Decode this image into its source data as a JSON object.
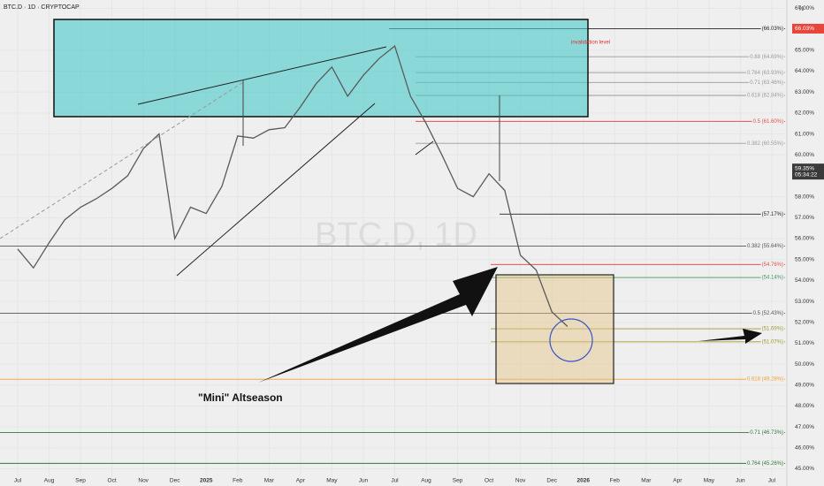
{
  "chart_data": {
    "type": "line",
    "title": "BTC.D · 1D · CRYPTOCAP",
    "watermark": "BTC.D, 1D",
    "unit_header": "%",
    "categories": [
      "Jul",
      null,
      "Aug",
      null,
      "Sep",
      null,
      "Oct",
      null,
      "Nov",
      null,
      "Dec",
      null,
      "2025",
      null,
      "Feb",
      null,
      "Mar",
      null,
      "Apr",
      null,
      "May",
      null,
      "Jun",
      null,
      "Jul",
      null,
      "Aug",
      null,
      "Sep",
      null,
      "Oct",
      null,
      "Nov",
      null,
      "Dec",
      null,
      "2026",
      null,
      "Feb",
      null,
      "Mar",
      null,
      "Apr",
      null,
      "May",
      null,
      "Jun",
      null,
      "Jul"
    ],
    "values": [
      55.5,
      54.6,
      55.8,
      56.9,
      57.5,
      57.9,
      58.4,
      59.0,
      60.3,
      61.0,
      56.0,
      57.5,
      57.2,
      58.5,
      60.9,
      60.8,
      61.2,
      61.3,
      62.3,
      63.4,
      64.2,
      62.8,
      63.8,
      64.6,
      65.2,
      62.8,
      61.5,
      60.0,
      58.4,
      58.0,
      59.1,
      58.3,
      55.2,
      54.5,
      52.5,
      51.8,
      null,
      null,
      null,
      null,
      null,
      null,
      null,
      null,
      null,
      null,
      null,
      null,
      null
    ],
    "color": "#5a5a5a",
    "ylim": [
      44.6,
      67.4
    ],
    "yticks": [
      {
        "value": 45,
        "label": "45.00%"
      },
      {
        "value": 46,
        "label": "46.00%"
      },
      {
        "value": 47,
        "label": "47.00%"
      },
      {
        "value": 48,
        "label": "48.00%"
      },
      {
        "value": 49,
        "label": "49.00%"
      },
      {
        "value": 50,
        "label": "50.00%"
      },
      {
        "value": 51,
        "label": "51.00%"
      },
      {
        "value": 52,
        "label": "52.00%"
      },
      {
        "value": 53,
        "label": "53.00%"
      },
      {
        "value": 54,
        "label": "54.00%"
      },
      {
        "value": 55,
        "label": "55.00%"
      },
      {
        "value": 56,
        "label": "56.00%"
      },
      {
        "value": 57,
        "label": "57.00%"
      },
      {
        "value": 58,
        "label": "58.00%"
      },
      {
        "value": 60,
        "label": "60.00%"
      },
      {
        "value": 61,
        "label": "61.00%"
      },
      {
        "value": 62,
        "label": "62.00%"
      },
      {
        "value": 63,
        "label": "63.00%"
      },
      {
        "value": 64,
        "label": "64.00%"
      },
      {
        "value": 65,
        "label": "65.00%"
      },
      {
        "value": 67,
        "label": "67.00%"
      }
    ],
    "grid": true,
    "levels": [
      {
        "value": 66.03,
        "label": "(66.03%)",
        "color": "#222222"
      },
      {
        "value": 64.69,
        "label": "0.88 (64.69%)",
        "color": "#9a9a9a"
      },
      {
        "value": 63.93,
        "label": "0.764 (63.93%)",
        "color": "#9a9a9a"
      },
      {
        "value": 63.46,
        "label": "0.71 (63.46%)",
        "color": "#9a9a9a"
      },
      {
        "value": 62.84,
        "label": "0.618 (62.84%)",
        "color": "#9a9a9a"
      },
      {
        "value": 61.6,
        "label": "0.5 (61.60%)",
        "color": "#e05050"
      },
      {
        "value": 60.55,
        "label": "0.382 (60.55%)",
        "color": "#9a9a9a"
      },
      {
        "value": 57.17,
        "label": "(57.17%)",
        "color": "#222222"
      },
      {
        "value": 55.64,
        "label": "0.382 (55.64%)",
        "color": "#555555"
      },
      {
        "value": 54.76,
        "label": "(54.76%)",
        "color": "#e05050"
      },
      {
        "value": 54.14,
        "label": "(54.14%)",
        "color": "#3c9a5a"
      },
      {
        "value": 52.43,
        "label": "0.5 (52.43%)",
        "color": "#555555"
      },
      {
        "value": 51.69,
        "label": "(51.69%)",
        "color": "#a09a30"
      },
      {
        "value": 51.07,
        "label": "(51.07%)",
        "color": "#a09a30"
      },
      {
        "value": 49.28,
        "label": "0.618 (49.28%)",
        "color": "#f0a030"
      },
      {
        "value": 46.73,
        "label": "0.71 (46.73%)",
        "color": "#2f7a3a"
      },
      {
        "value": 45.26,
        "label": "0.764 (45.26%)",
        "color": "#2f7a3a"
      }
    ],
    "price_labels": [
      {
        "value": 66.03,
        "label": "66.03%",
        "color": "#e8463a"
      },
      {
        "value": 59.35,
        "label": "59.35%",
        "countdown": "05:34:22",
        "color": "#3a3a3a"
      }
    ],
    "annotations": [
      "invalidation level",
      "\"Mini\" Altseason"
    ]
  }
}
